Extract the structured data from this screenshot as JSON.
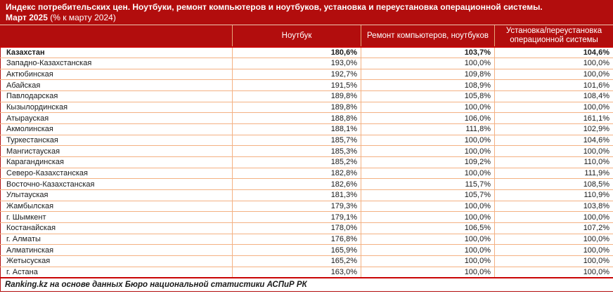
{
  "title": {
    "line1": "Индекс потребительских цен. Ноутбуки, ремонт компьютеров и ноутбуков, установка и переустановка операционной системы.",
    "line2_bold": "Март 2025",
    "line2_rest": " (% к марту 2024)"
  },
  "table": {
    "columns": [
      "",
      "Ноутбук",
      "Ремонт компьютеров, ноутбуков",
      "Установка/переустановка операционной системы"
    ],
    "rows": [
      {
        "region": "Казахстан",
        "laptop": "180,6%",
        "repair": "103,7%",
        "os": "104,6%",
        "bold": true
      },
      {
        "region": "Западно-Казахстанская",
        "laptop": "193,0%",
        "repair": "100,0%",
        "os": "100,0%",
        "bold": false
      },
      {
        "region": "Актюбинская",
        "laptop": "192,7%",
        "repair": "109,8%",
        "os": "100,0%",
        "bold": false
      },
      {
        "region": "Абайская",
        "laptop": "191,5%",
        "repair": "108,9%",
        "os": "101,6%",
        "bold": false
      },
      {
        "region": "Павлодарская",
        "laptop": "189,8%",
        "repair": "105,8%",
        "os": "108,4%",
        "bold": false
      },
      {
        "region": "Кызылординская",
        "laptop": "189,8%",
        "repair": "100,0%",
        "os": "100,0%",
        "bold": false
      },
      {
        "region": "Атырауская",
        "laptop": "188,8%",
        "repair": "106,0%",
        "os": "161,1%",
        "bold": false
      },
      {
        "region": "Акмолинская",
        "laptop": "188,1%",
        "repair": "111,8%",
        "os": "102,9%",
        "bold": false
      },
      {
        "region": "Туркестанская",
        "laptop": "185,7%",
        "repair": "100,0%",
        "os": "104,6%",
        "bold": false
      },
      {
        "region": "Мангистауская",
        "laptop": "185,3%",
        "repair": "100,0%",
        "os": "100,0%",
        "bold": false
      },
      {
        "region": "Карагандинская",
        "laptop": "185,2%",
        "repair": "109,2%",
        "os": "110,0%",
        "bold": false
      },
      {
        "region": "Северо-Казахстанская",
        "laptop": "182,8%",
        "repair": "100,0%",
        "os": "111,9%",
        "bold": false
      },
      {
        "region": "Восточно-Казахстанская",
        "laptop": "182,6%",
        "repair": "115,7%",
        "os": "108,5%",
        "bold": false
      },
      {
        "region": "Улытауская",
        "laptop": "181,3%",
        "repair": "105,7%",
        "os": "110,9%",
        "bold": false
      },
      {
        "region": "Жамбылская",
        "laptop": "179,3%",
        "repair": "100,0%",
        "os": "103,8%",
        "bold": false
      },
      {
        "region": "г. Шымкент",
        "laptop": "179,1%",
        "repair": "100,0%",
        "os": "100,0%",
        "bold": false
      },
      {
        "region": "Костанайская",
        "laptop": "178,0%",
        "repair": "106,5%",
        "os": "107,2%",
        "bold": false
      },
      {
        "region": "г. Алматы",
        "laptop": "176,8%",
        "repair": "100,0%",
        "os": "100,0%",
        "bold": false
      },
      {
        "region": "Алматинская",
        "laptop": "165,9%",
        "repair": "100,0%",
        "os": "100,0%",
        "bold": false
      },
      {
        "region": "Жетысуская",
        "laptop": "165,2%",
        "repair": "100,0%",
        "os": "100,0%",
        "bold": false
      },
      {
        "region": "г. Астана",
        "laptop": "163,0%",
        "repair": "100,0%",
        "os": "100,0%",
        "bold": false
      }
    ]
  },
  "footer": "Ranking.kz на основе данных Бюро национальной статистики АСПиР РК",
  "colors": {
    "band_red": "#B20D0D",
    "line_red": "#C90505",
    "grid_peach": "#F4B183",
    "title_divider": "#F0C7AE"
  },
  "chart_data": {
    "type": "table",
    "title": "Индекс потребительских цен. Ноутбуки, ремонт компьютеров и ноутбуков, установка и переустановка операционной системы.",
    "subtitle": "Март 2025 (% к марту 2024)",
    "unit": "%",
    "categories": [
      "Казахстан",
      "Западно-Казахстанская",
      "Актюбинская",
      "Абайская",
      "Павлодарская",
      "Кызылординская",
      "Атырауская",
      "Акмолинская",
      "Туркестанская",
      "Мангистауская",
      "Карагандинская",
      "Северо-Казахстанская",
      "Восточно-Казахстанская",
      "Улытауская",
      "Жамбылская",
      "г. Шымкент",
      "Костанайская",
      "г. Алматы",
      "Алматинская",
      "Жетысуская",
      "г. Астана"
    ],
    "series": [
      {
        "name": "Ноутбук",
        "values": [
          180.6,
          193.0,
          192.7,
          191.5,
          189.8,
          189.8,
          188.8,
          188.1,
          185.7,
          185.3,
          185.2,
          182.8,
          182.6,
          181.3,
          179.3,
          179.1,
          178.0,
          176.8,
          165.9,
          165.2,
          163.0
        ]
      },
      {
        "name": "Ремонт компьютеров, ноутбуков",
        "values": [
          103.7,
          100.0,
          109.8,
          108.9,
          105.8,
          100.0,
          106.0,
          111.8,
          100.0,
          100.0,
          109.2,
          100.0,
          115.7,
          105.7,
          100.0,
          100.0,
          106.5,
          100.0,
          100.0,
          100.0,
          100.0
        ]
      },
      {
        "name": "Установка/переустановка операционной системы",
        "values": [
          104.6,
          100.0,
          100.0,
          101.6,
          108.4,
          100.0,
          161.1,
          102.9,
          104.6,
          100.0,
          110.0,
          111.9,
          108.5,
          110.9,
          103.8,
          100.0,
          107.2,
          100.0,
          100.0,
          100.0,
          100.0
        ]
      }
    ],
    "source_note": "Ranking.kz на основе данных Бюро национальной статистики АСПиР РК"
  }
}
